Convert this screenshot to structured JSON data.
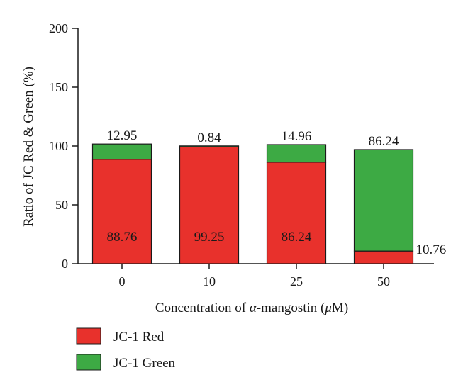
{
  "chart_data": {
    "type": "bar",
    "stacked": true,
    "categories": [
      "0",
      "10",
      "25",
      "50"
    ],
    "series": [
      {
        "name": "JC-1 Red",
        "color": "#e8312c",
        "values": [
          88.76,
          99.25,
          86.24,
          10.76
        ]
      },
      {
        "name": "JC-1 Green",
        "color": "#3daa44",
        "values": [
          12.95,
          0.84,
          14.96,
          86.24
        ]
      }
    ],
    "data_labels": {
      "red": [
        "88.76",
        "99.25",
        "86.24",
        "10.76"
      ],
      "green": [
        "12.95",
        "0.84",
        "14.96",
        "86.24"
      ]
    },
    "ylabel": "Ratio of JC Red & Green (%)",
    "xlabel_prefix": "Concentration of ",
    "xlabel_alpha": "α",
    "xlabel_mid": "-mangostin (",
    "xlabel_mu": "μ",
    "xlabel_suffix": "M)",
    "ylim": [
      0,
      200
    ],
    "yticks": [
      "0",
      "50",
      "100",
      "150",
      "200"
    ],
    "legend_position": "bottom-left",
    "grid": false
  }
}
